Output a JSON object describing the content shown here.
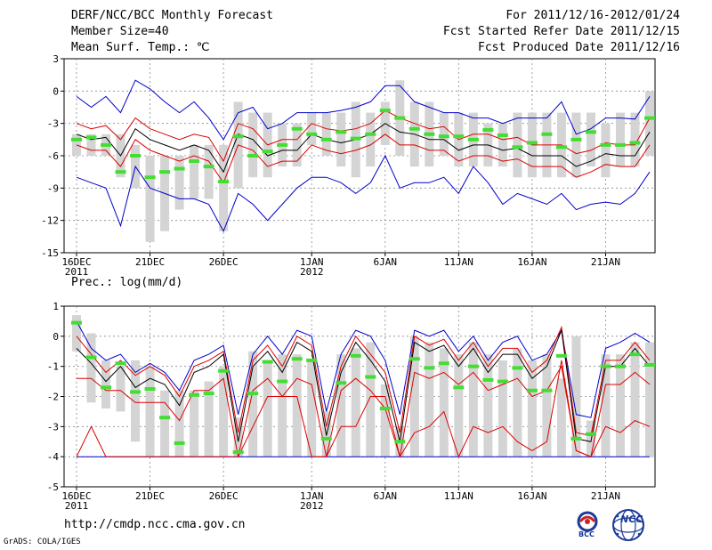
{
  "header": {
    "title": "DERF/NCC/BCC Monthly Forecast",
    "member_size": "Member Size=40",
    "variable1": "Mean Surf. Temp.: ℃",
    "period": "For 2011/12/16-2012/01/24",
    "fcst_started": "Fcst Started Refer Date 2011/12/15",
    "fcst_produced": "Fcst Produced Date 2011/12/16"
  },
  "footer": {
    "url": "http://cmdp.ncc.cma.gov.cn",
    "grads": "GrADS: COLA/IGES",
    "logo_bcc": "BCC",
    "logo_ncc": "NCC"
  },
  "colors": {
    "box": "#d4d4d4",
    "median": "#44dd33",
    "mean": "#000000",
    "inner": "#dd0000",
    "outer": "#0000cc"
  },
  "chart_data": [
    {
      "type": "line",
      "title": "Mean Surf. Temp.: ℃",
      "ylabel": "℃",
      "ylim": [
        -15,
        3
      ],
      "yticks": [
        3,
        0,
        -3,
        -6,
        -9,
        -12,
        -15
      ],
      "x_tick_labels": [
        {
          "day": 1,
          "label": "16DEC",
          "sub": "2011"
        },
        {
          "day": 6,
          "label": "21DEC",
          "sub": ""
        },
        {
          "day": 11,
          "label": "26DEC",
          "sub": ""
        },
        {
          "day": 17,
          "label": "1JAN",
          "sub": "2012"
        },
        {
          "day": 22,
          "label": "6JAN",
          "sub": ""
        },
        {
          "day": 27,
          "label": "11JAN",
          "sub": ""
        },
        {
          "day": 32,
          "label": "16JAN",
          "sub": ""
        },
        {
          "day": 37,
          "label": "21JAN",
          "sub": ""
        }
      ],
      "days": [
        1,
        2,
        3,
        4,
        5,
        6,
        7,
        8,
        9,
        10,
        11,
        12,
        13,
        14,
        15,
        16,
        17,
        18,
        19,
        20,
        21,
        22,
        23,
        24,
        25,
        26,
        27,
        28,
        29,
        30,
        31,
        32,
        33,
        34,
        35,
        36,
        37,
        38,
        39,
        40
      ],
      "series": [
        {
          "name": "box_top",
          "values": [
            -4,
            -4,
            -4,
            -4,
            -5,
            -6,
            -6,
            -6,
            -5,
            -5,
            -5,
            -1,
            -2,
            -2,
            -3,
            -3,
            -2,
            -2,
            -2,
            -1,
            -2,
            -1,
            1,
            -1,
            -1,
            -2,
            -2,
            -2,
            -3,
            -3,
            -2,
            -2,
            -2,
            -2,
            -2,
            -2,
            -3,
            -2,
            -2,
            0
          ]
        },
        {
          "name": "box_bottom",
          "values": [
            -6,
            -6,
            -6,
            -8,
            -9,
            -14,
            -13,
            -11,
            -10,
            -10,
            -13,
            -9,
            -8,
            -8,
            -7,
            -7,
            -5,
            -6,
            -7,
            -8,
            -7,
            -5,
            -6,
            -7,
            -7,
            -6,
            -7,
            -7,
            -7,
            -7,
            -8,
            -8,
            -8,
            -8,
            -8,
            -7,
            -8,
            -7,
            -7,
            -6
          ]
        },
        {
          "name": "median",
          "values": [
            -4.5,
            -4.3,
            -5.0,
            -7.5,
            -6.0,
            -8.0,
            -7.5,
            -7.2,
            -6.5,
            -7.0,
            -8.4,
            -4.2,
            -6.0,
            -5.6,
            -5.0,
            -3.5,
            -4.0,
            -4.5,
            -3.8,
            -4.4,
            -4.0,
            -1.8,
            -2.5,
            -3.5,
            -4.0,
            -4.2,
            -4.2,
            -4.5,
            -3.6,
            -4.1,
            -5.2,
            -4.8,
            -4.0,
            -5.2,
            -4.5,
            -3.8,
            -5.0,
            -5.0,
            -4.8,
            -2.5
          ]
        },
        {
          "name": "mean",
          "values": [
            -4.0,
            -4.5,
            -4.3,
            -6.0,
            -3.5,
            -4.5,
            -5.0,
            -5.5,
            -5.0,
            -5.5,
            -7.5,
            -4.0,
            -4.5,
            -6.0,
            -5.5,
            -5.5,
            -4.0,
            -4.5,
            -4.8,
            -4.5,
            -4.0,
            -3.0,
            -3.8,
            -4.0,
            -4.5,
            -4.5,
            -5.5,
            -5.0,
            -5.0,
            -5.5,
            -5.3,
            -6.0,
            -6.0,
            -6.0,
            -7.0,
            -6.5,
            -5.8,
            -6.0,
            -6.0,
            -3.8
          ]
        },
        {
          "name": "inner_upper",
          "values": [
            -3.0,
            -3.5,
            -3.2,
            -4.5,
            -2.5,
            -3.5,
            -4.0,
            -4.5,
            -4.0,
            -4.3,
            -6.5,
            -3.0,
            -3.5,
            -5.0,
            -4.5,
            -4.5,
            -3.0,
            -3.5,
            -3.7,
            -3.5,
            -3.0,
            -1.8,
            -2.5,
            -3.0,
            -3.5,
            -3.3,
            -4.5,
            -4.0,
            -4.0,
            -4.5,
            -4.3,
            -5.0,
            -5.0,
            -5.0,
            -5.8,
            -5.5,
            -4.8,
            -5.0,
            -5.0,
            -2.5
          ]
        },
        {
          "name": "inner_lower",
          "values": [
            -5.0,
            -5.5,
            -5.5,
            -7.0,
            -4.5,
            -5.5,
            -6.0,
            -6.5,
            -6.0,
            -6.5,
            -8.5,
            -5.0,
            -5.5,
            -7.0,
            -6.5,
            -6.5,
            -5.0,
            -5.5,
            -5.8,
            -5.5,
            -5.0,
            -4.0,
            -5.0,
            -5.0,
            -5.5,
            -5.5,
            -6.5,
            -6.0,
            -6.0,
            -6.5,
            -6.3,
            -7.0,
            -7.0,
            -7.0,
            -8.0,
            -7.5,
            -6.8,
            -7.0,
            -7.0,
            -5.0
          ]
        },
        {
          "name": "outer_upper",
          "values": [
            -0.5,
            -1.5,
            -0.5,
            -2.0,
            1.0,
            0.2,
            -1.0,
            -2.0,
            -1.0,
            -2.5,
            -4.5,
            -2.0,
            -1.5,
            -3.5,
            -3.0,
            -2.0,
            -2.0,
            -2.0,
            -1.8,
            -1.5,
            -1.0,
            0.5,
            0.5,
            -1.0,
            -1.5,
            -2.0,
            -2.0,
            -2.5,
            -2.5,
            -3.0,
            -2.5,
            -2.5,
            -2.5,
            -1.0,
            -4.0,
            -3.5,
            -2.5,
            -2.5,
            -2.6,
            -0.5
          ]
        },
        {
          "name": "outer_lower",
          "values": [
            -8.0,
            -8.5,
            -9.0,
            -12.5,
            -7.0,
            -9.0,
            -9.5,
            -10.0,
            -10.0,
            -10.5,
            -13.0,
            -9.5,
            -10.5,
            -12.0,
            -10.5,
            -9.0,
            -8.0,
            -8.0,
            -8.5,
            -9.5,
            -8.5,
            -6.0,
            -9.0,
            -8.5,
            -8.5,
            -8.0,
            -9.5,
            -7.0,
            -8.5,
            -10.5,
            -9.5,
            -10.0,
            -10.5,
            -9.5,
            -11.0,
            -10.5,
            -10.3,
            -10.5,
            -9.5,
            -7.5
          ]
        }
      ]
    },
    {
      "type": "line",
      "title": "Prec.: log(mm/d)",
      "ylabel": "log(mm/d)",
      "ylim": [
        -5,
        1
      ],
      "yticks": [
        1,
        0,
        -1,
        -2,
        -3,
        -4,
        -5
      ],
      "x_tick_labels": [
        {
          "day": 1,
          "label": "16DEC",
          "sub": "2011"
        },
        {
          "day": 6,
          "label": "21DEC",
          "sub": ""
        },
        {
          "day": 11,
          "label": "26DEC",
          "sub": ""
        },
        {
          "day": 17,
          "label": "1JAN",
          "sub": "2012"
        },
        {
          "day": 22,
          "label": "6JAN",
          "sub": ""
        },
        {
          "day": 27,
          "label": "11JAN",
          "sub": ""
        },
        {
          "day": 32,
          "label": "16JAN",
          "sub": ""
        },
        {
          "day": 37,
          "label": "21JAN",
          "sub": ""
        }
      ],
      "days": [
        1,
        2,
        3,
        4,
        5,
        6,
        7,
        8,
        9,
        10,
        11,
        12,
        13,
        14,
        15,
        16,
        17,
        18,
        19,
        20,
        21,
        22,
        23,
        24,
        25,
        26,
        27,
        28,
        29,
        30,
        31,
        32,
        33,
        34,
        35,
        36,
        37,
        38,
        39,
        40
      ],
      "series": [
        {
          "name": "box_top",
          "values": [
            0.7,
            0.1,
            -0.8,
            -1.0,
            -0.8,
            -1.0,
            -1.8,
            -1.8,
            -1.8,
            -1.5,
            -1.0,
            -2.7,
            -0.5,
            -0.8,
            -0.6,
            -0.6,
            -0.8,
            -2.5,
            -0.6,
            -0.4,
            -0.2,
            -1.6,
            -3.0,
            0.0,
            -0.2,
            -0.4,
            -0.6,
            -0.2,
            -0.6,
            -0.8,
            -0.4,
            -0.8,
            -0.6,
            -1.4,
            0.0,
            -2.8,
            -0.6,
            -0.6,
            -0.2,
            -0.2
          ]
        },
        {
          "name": "box_bottom",
          "values": [
            -0.5,
            -2.2,
            -2.4,
            -2.5,
            -3.5,
            -4.0,
            -4.0,
            -4.0,
            -4.0,
            -4.0,
            -4.0,
            -4.0,
            -4.0,
            -4.0,
            -4.0,
            -4.0,
            -4.0,
            -4.0,
            -4.0,
            -4.0,
            -4.0,
            -4.0,
            -4.0,
            -4.0,
            -4.0,
            -4.0,
            -4.0,
            -4.0,
            -4.0,
            -4.0,
            -4.0,
            -4.0,
            -4.0,
            -4.0,
            -4.0,
            -4.0,
            -4.0,
            -4.0,
            -4.0,
            -4.0
          ]
        },
        {
          "name": "median",
          "values": [
            0.45,
            -0.7,
            -1.7,
            -0.9,
            -1.85,
            -1.75,
            -2.7,
            -3.55,
            -1.95,
            -1.9,
            -1.15,
            -3.85,
            -1.9,
            -0.85,
            -1.5,
            -0.75,
            -0.8,
            -3.4,
            -1.55,
            -0.65,
            -1.35,
            -2.4,
            -3.5,
            -0.75,
            -1.05,
            -0.9,
            -1.7,
            -1.0,
            -1.45,
            -1.5,
            -1.05,
            -1.8,
            -1.8,
            -0.65,
            -3.4,
            -3.25,
            -1.0,
            -1.0,
            -0.6,
            -0.95
          ]
        },
        {
          "name": "mean",
          "values": [
            -0.4,
            -0.9,
            -1.5,
            -1.0,
            -1.7,
            -1.4,
            -1.6,
            -2.3,
            -1.2,
            -1.0,
            -0.6,
            -3.5,
            -1.0,
            -0.5,
            -1.2,
            -0.2,
            -0.5,
            -3.3,
            -1.2,
            -0.2,
            -0.8,
            -1.5,
            -3.5,
            -0.2,
            -0.5,
            -0.3,
            -1.0,
            -0.4,
            -1.2,
            -0.6,
            -0.6,
            -1.4,
            -1.0,
            0.2,
            -3.4,
            -3.5,
            -1.0,
            -1.0,
            -0.4,
            -1.0
          ]
        },
        {
          "name": "inner_upper",
          "values": [
            0.0,
            -0.6,
            -1.2,
            -0.8,
            -1.3,
            -1.0,
            -1.3,
            -2.0,
            -1.0,
            -0.8,
            -0.5,
            -3.2,
            -0.8,
            -0.3,
            -1.0,
            0.0,
            -0.3,
            -3.0,
            -1.0,
            0.0,
            -0.6,
            -1.2,
            -3.2,
            0.0,
            -0.3,
            -0.1,
            -0.8,
            -0.2,
            -1.0,
            -0.4,
            -0.4,
            -1.2,
            -0.8,
            0.3,
            -3.2,
            -3.3,
            -0.8,
            -0.8,
            -0.2,
            -0.8
          ]
        },
        {
          "name": "inner_lower",
          "values": [
            -1.4,
            -1.4,
            -1.8,
            -1.8,
            -2.2,
            -2.2,
            -2.2,
            -2.8,
            -1.8,
            -1.8,
            -1.4,
            -4.0,
            -1.8,
            -1.4,
            -2.0,
            -1.4,
            -1.6,
            -4.0,
            -1.8,
            -1.4,
            -1.8,
            -2.4,
            -4.0,
            -1.2,
            -1.4,
            -1.2,
            -1.6,
            -1.2,
            -1.8,
            -1.6,
            -1.4,
            -2.0,
            -1.8,
            -1.0,
            -3.8,
            -4.0,
            -1.6,
            -1.6,
            -1.2,
            -1.6
          ]
        },
        {
          "name": "inner_lower2",
          "values": [
            -4.0,
            -3.0,
            -4.0,
            -4.0,
            -4.0,
            -4.0,
            -4.0,
            -4.0,
            -4.0,
            -4.0,
            -4.0,
            -4.0,
            -3.0,
            -2.0,
            -2.0,
            -2.0,
            -4.0,
            -4.0,
            -3.0,
            -3.0,
            -2.0,
            -2.0,
            -4.0,
            -3.2,
            -3.0,
            -2.5,
            -4.0,
            -3.0,
            -3.2,
            -3.0,
            -3.5,
            -3.8,
            -3.5,
            -0.8,
            -3.8,
            -4.0,
            -3.0,
            -3.2,
            -2.8,
            -3.0
          ]
        },
        {
          "name": "outer_upper",
          "values": [
            0.5,
            -0.4,
            -0.8,
            -0.6,
            -1.2,
            -0.9,
            -1.2,
            -1.8,
            -0.8,
            -0.6,
            -0.3,
            -2.6,
            -0.6,
            0.0,
            -0.6,
            0.2,
            0.0,
            -2.5,
            -0.6,
            0.2,
            0.0,
            -0.8,
            -2.6,
            0.2,
            0.0,
            0.2,
            -0.5,
            0.0,
            -0.8,
            -0.2,
            0.0,
            -0.8,
            -0.6,
            0.2,
            -2.6,
            -2.7,
            -0.4,
            -0.2,
            0.1,
            -0.2
          ]
        },
        {
          "name": "outer_lower",
          "values": [
            -4,
            -4,
            -4,
            -4,
            -4,
            -4,
            -4,
            -4,
            -4,
            -4,
            -4,
            -4,
            -4,
            -4,
            -4,
            -4,
            -4,
            -4,
            -4,
            -4,
            -4,
            -4,
            -4,
            -4,
            -4,
            -4,
            -4,
            -4,
            -4,
            -4,
            -4,
            -4,
            -4,
            -4,
            -4,
            -4,
            -4,
            -4,
            -4,
            -4
          ]
        }
      ]
    }
  ]
}
